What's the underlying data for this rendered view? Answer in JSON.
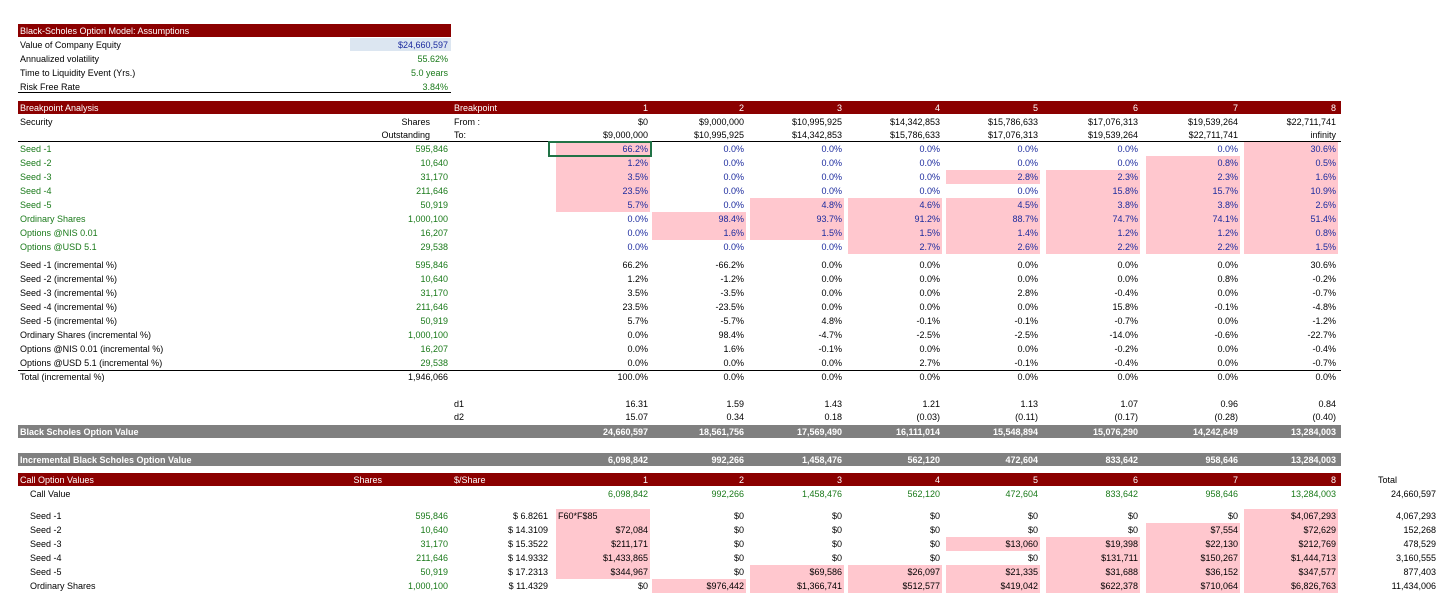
{
  "assumptions": {
    "title": "Black-Scholes Option Model: Assumptions",
    "rows": [
      {
        "label": "Value of Company Equity",
        "value": "$24,660,597"
      },
      {
        "label": "Annualized volatility",
        "value": "55.62%"
      },
      {
        "label": "Time to Liquidity Event (Yrs.)",
        "value": "5.0 years"
      },
      {
        "label": "Risk Free Rate",
        "value": "3.84%"
      }
    ]
  },
  "breakpoint": {
    "title": "Breakpoint Analysis",
    "bp_label": "Breakpoint",
    "security_label": "Security",
    "shares_label": "Shares",
    "outstanding_label": "Outstanding",
    "from_label": "From :",
    "to_label": "To:",
    "columns": [
      "1",
      "2",
      "3",
      "4",
      "5",
      "6",
      "7",
      "8"
    ],
    "from": [
      "$0",
      "$9,000,000",
      "$10,995,925",
      "$14,342,853",
      "$15,786,633",
      "$17,076,313",
      "$19,539,264",
      "$22,711,741"
    ],
    "to": [
      "$9,000,000",
      "$10,995,925",
      "$14,342,853",
      "$15,786,633",
      "$17,076,313",
      "$19,539,264",
      "$22,711,741",
      "infinity"
    ],
    "rows": [
      {
        "label": "Seed -1",
        "shares": "595,846",
        "v": [
          "66.2%",
          "0.0%",
          "0.0%",
          "0.0%",
          "0.0%",
          "0.0%",
          "0.0%",
          "30.6%"
        ]
      },
      {
        "label": "Seed -2",
        "shares": "10,640",
        "v": [
          "1.2%",
          "0.0%",
          "0.0%",
          "0.0%",
          "0.0%",
          "0.0%",
          "0.8%",
          "0.5%"
        ]
      },
      {
        "label": "Seed -3",
        "shares": "31,170",
        "v": [
          "3.5%",
          "0.0%",
          "0.0%",
          "0.0%",
          "2.8%",
          "2.3%",
          "2.3%",
          "1.6%"
        ]
      },
      {
        "label": "Seed -4",
        "shares": "211,646",
        "v": [
          "23.5%",
          "0.0%",
          "0.0%",
          "0.0%",
          "0.0%",
          "15.8%",
          "15.7%",
          "10.9%"
        ]
      },
      {
        "label": "Seed -5",
        "shares": "50,919",
        "v": [
          "5.7%",
          "0.0%",
          "4.8%",
          "4.6%",
          "4.5%",
          "3.8%",
          "3.8%",
          "2.6%"
        ]
      },
      {
        "label": "Ordinary Shares",
        "shares": "1,000,100",
        "v": [
          "0.0%",
          "98.4%",
          "93.7%",
          "91.2%",
          "88.7%",
          "74.7%",
          "74.1%",
          "51.4%"
        ]
      },
      {
        "label": "Options @NIS 0.01",
        "shares": "16,207",
        "v": [
          "0.0%",
          "1.6%",
          "1.5%",
          "1.5%",
          "1.4%",
          "1.2%",
          "1.2%",
          "0.8%"
        ]
      },
      {
        "label": "Options @USD 5.1",
        "shares": "29,538",
        "v": [
          "0.0%",
          "0.0%",
          "0.0%",
          "2.7%",
          "2.6%",
          "2.2%",
          "2.2%",
          "1.5%"
        ]
      }
    ],
    "inc_rows": [
      {
        "label": "Seed -1 (incremental %)",
        "shares": "595,846",
        "v": [
          "66.2%",
          "-66.2%",
          "0.0%",
          "0.0%",
          "0.0%",
          "0.0%",
          "0.0%",
          "30.6%"
        ]
      },
      {
        "label": "Seed -2 (incremental %)",
        "shares": "10,640",
        "v": [
          "1.2%",
          "-1.2%",
          "0.0%",
          "0.0%",
          "0.0%",
          "0.0%",
          "0.8%",
          "-0.2%"
        ]
      },
      {
        "label": "Seed -3 (incremental %)",
        "shares": "31,170",
        "v": [
          "3.5%",
          "-3.5%",
          "0.0%",
          "0.0%",
          "2.8%",
          "-0.4%",
          "0.0%",
          "-0.7%"
        ]
      },
      {
        "label": "Seed -4 (incremental %)",
        "shares": "211,646",
        "v": [
          "23.5%",
          "-23.5%",
          "0.0%",
          "0.0%",
          "0.0%",
          "15.8%",
          "-0.1%",
          "-4.8%"
        ]
      },
      {
        "label": "Seed -5 (incremental %)",
        "shares": "50,919",
        "v": [
          "5.7%",
          "-5.7%",
          "4.8%",
          "-0.1%",
          "-0.1%",
          "-0.7%",
          "0.0%",
          "-1.2%"
        ]
      },
      {
        "label": "Ordinary Shares (incremental %)",
        "shares": "1,000,100",
        "v": [
          "0.0%",
          "98.4%",
          "-4.7%",
          "-2.5%",
          "-2.5%",
          "-14.0%",
          "-0.6%",
          "-22.7%"
        ]
      },
      {
        "label": "Options @NIS 0.01 (incremental %)",
        "shares": "16,207",
        "v": [
          "0.0%",
          "1.6%",
          "-0.1%",
          "0.0%",
          "0.0%",
          "-0.2%",
          "0.0%",
          "-0.4%"
        ]
      },
      {
        "label": "Options @USD 5.1 (incremental %)",
        "shares": "29,538",
        "v": [
          "0.0%",
          "0.0%",
          "0.0%",
          "2.7%",
          "-0.1%",
          "-0.4%",
          "0.0%",
          "-0.7%"
        ]
      }
    ],
    "total_label": "Total (incremental %)",
    "total_shares": "1,946,066",
    "total": [
      "100.0%",
      "0.0%",
      "0.0%",
      "0.0%",
      "0.0%",
      "0.0%",
      "0.0%",
      "0.0%"
    ],
    "d1_label": "d1",
    "d2_label": "d2",
    "d1": [
      "16.31",
      "1.59",
      "1.43",
      "1.21",
      "1.13",
      "1.07",
      "0.96",
      "0.84"
    ],
    "d2": [
      "15.07",
      "0.34",
      "0.18",
      "(0.03)",
      "(0.11)",
      "(0.17)",
      "(0.28)",
      "(0.40)"
    ],
    "bs_label": "Black Scholes Option Value",
    "bs": [
      "24,660,597",
      "18,561,756",
      "17,569,490",
      "16,111,014",
      "15,548,894",
      "15,076,290",
      "14,242,649",
      "13,284,003"
    ],
    "ibs_label": "Incremental Black Scholes Option Value",
    "ibs": [
      "6,098,842",
      "992,266",
      "1,458,476",
      "562,120",
      "472,604",
      "833,642",
      "958,646",
      "13,284,003"
    ]
  },
  "call": {
    "title": "Call Option Values",
    "shares_label": "Shares",
    "per_share_label": "$/Share",
    "total_label": "Total",
    "columns": [
      "1",
      "2",
      "3",
      "4",
      "5",
      "6",
      "7",
      "8"
    ],
    "call_value_label": "Call Value",
    "call_value": [
      "6,098,842",
      "992,266",
      "1,458,476",
      "562,120",
      "472,604",
      "833,642",
      "958,646",
      "13,284,003"
    ],
    "call_value_total": "24,660,597",
    "formula": "F60*F$85",
    "rows": [
      {
        "label": "Seed -1",
        "shares": "595,846",
        "ps": "$ 6.8261",
        "v": [
          "",
          "$0",
          "$0",
          "$0",
          "$0",
          "$0",
          "$0",
          "$4,067,293"
        ],
        "total": "4,067,293"
      },
      {
        "label": "Seed -2",
        "shares": "10,640",
        "ps": "$ 14.3109",
        "v": [
          "$72,084",
          "$0",
          "$0",
          "$0",
          "$0",
          "$0",
          "$7,554",
          "$72,629"
        ],
        "total": "152,268"
      },
      {
        "label": "Seed -3",
        "shares": "31,170",
        "ps": "$ 15.3522",
        "v": [
          "$211,171",
          "$0",
          "$0",
          "$0",
          "$13,060",
          "$19,398",
          "$22,130",
          "$212,769"
        ],
        "total": "478,529"
      },
      {
        "label": "Seed -4",
        "shares": "211,646",
        "ps": "$ 14.9332",
        "v": [
          "$1,433,865",
          "$0",
          "$0",
          "$0",
          "$0",
          "$131,711",
          "$150,267",
          "$1,444,713"
        ],
        "total": "3,160,555"
      },
      {
        "label": "Seed -5",
        "shares": "50,919",
        "ps": "$ 17.2313",
        "v": [
          "$344,967",
          "$0",
          "$69,586",
          "$26,097",
          "$21,335",
          "$31,688",
          "$36,152",
          "$347,577"
        ],
        "total": "877,403"
      },
      {
        "label": "Ordinary Shares",
        "shares": "1,000,100",
        "ps": "$ 11.4329",
        "v": [
          "$0",
          "$976,442",
          "$1,366,741",
          "$512,577",
          "$419,042",
          "$622,378",
          "$710,064",
          "$6,826,763"
        ],
        "total": "11,434,006"
      }
    ]
  }
}
